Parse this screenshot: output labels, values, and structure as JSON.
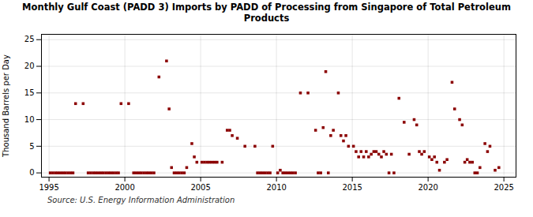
{
  "chart_data": {
    "type": "scatter",
    "title": "Monthly Gulf Coast (PADD 3) Imports by PADD of Processing from Singapore of Total Petroleum\nProducts",
    "ylabel": "Thousand Barrels per Day",
    "annotations": [
      "Source: U.S. Energy Information Administration"
    ],
    "color": "#8b0000",
    "marker": "square",
    "grid": true,
    "xlim": [
      1994.5,
      2025.8
    ],
    "ylim": [
      -0.8,
      26
    ],
    "xticks": [
      1995,
      2000,
      2005,
      2010,
      2015,
      2020,
      2025
    ],
    "yticks": [
      0,
      5,
      10,
      15,
      20,
      25
    ],
    "x": [
      1996.75,
      1997.25,
      1999.75,
      2000.25,
      2002.25,
      2002.75,
      2002.92,
      2003.08,
      2004.08,
      2004.42,
      2004.58,
      2004.75,
      2005.08,
      2005.25,
      2005.42,
      2005.58,
      2005.75,
      2005.92,
      2006.08,
      2006.42,
      2006.75,
      2006.92,
      2007.08,
      2007.42,
      2007.92,
      2008.58,
      2009.75,
      2010.25,
      2011.58,
      2012.08,
      2012.58,
      2013.08,
      2013.25,
      2013.58,
      2013.75,
      2014.08,
      2014.25,
      2014.42,
      2014.58,
      2014.75,
      2015.08,
      2015.25,
      2015.42,
      2015.58,
      2015.75,
      2015.92,
      2016.08,
      2016.25,
      2016.42,
      2016.58,
      2016.75,
      2016.92,
      2017.08,
      2017.25,
      2017.58,
      2018.08,
      2018.42,
      2018.75,
      2019.08,
      2019.25,
      2019.42,
      2019.58,
      2019.75,
      2020.08,
      2020.25,
      2020.42,
      2020.58,
      2021.08,
      2021.25,
      2021.58,
      2021.75,
      2022.08,
      2022.25,
      2022.42,
      2022.58,
      2022.75,
      2022.92,
      2023.42,
      2023.75,
      2023.92,
      2024.08,
      2024.42,
      2024.67,
      1995.08,
      1995.25,
      1995.42,
      1995.58,
      1995.75,
      1995.92,
      1996.08,
      1996.25,
      1996.42,
      1996.58,
      1997.58,
      1997.75,
      1997.92,
      1998.08,
      1998.25,
      1998.42,
      1998.58,
      1998.75,
      1998.92,
      1999.08,
      1999.25,
      1999.42,
      1999.58,
      2000.58,
      2000.75,
      2000.92,
      2001.08,
      2001.25,
      2001.42,
      2001.58,
      2001.75,
      2001.92,
      2003.25,
      2003.42,
      2003.58,
      2003.75,
      2003.92,
      2008.75,
      2008.92,
      2009.08,
      2009.25,
      2009.42,
      2009.58,
      2010.08,
      2010.42,
      2010.58,
      2010.75,
      2010.92,
      2011.08,
      2011.25,
      2012.75,
      2012.92,
      2013.42,
      2017.42,
      2017.75,
      2020.75,
      2023.08,
      2023.25
    ],
    "values": [
      13,
      13,
      13,
      13,
      18,
      21,
      12,
      1,
      1,
      5.5,
      3,
      2,
      2,
      2,
      2,
      2,
      2,
      2,
      2,
      2,
      8,
      8,
      7,
      6.5,
      5,
      5,
      5,
      0.5,
      15,
      15,
      8,
      8.5,
      19,
      7,
      8,
      15,
      7,
      6,
      7,
      5,
      5,
      4,
      3,
      4,
      3,
      4,
      3,
      3.5,
      4,
      4,
      3.5,
      3,
      4,
      3.5,
      3.5,
      14,
      9.5,
      3.5,
      10,
      9,
      4,
      3.5,
      4,
      3,
      2.5,
      3,
      2,
      2,
      2.5,
      17,
      12,
      10,
      9,
      2,
      2.5,
      2,
      2,
      1,
      5.5,
      4,
      5,
      0.5,
      1,
      0,
      0,
      0,
      0,
      0,
      0,
      0,
      0,
      0,
      0,
      0,
      0,
      0,
      0,
      0,
      0,
      0,
      0,
      0,
      0,
      0,
      0,
      0,
      0,
      0,
      0,
      0,
      0,
      0,
      0,
      0,
      0,
      0,
      0,
      0,
      0,
      0,
      0,
      0,
      0,
      0,
      0,
      0,
      0,
      0,
      0,
      0,
      0,
      0,
      0,
      0,
      0,
      0,
      0,
      0,
      0.5,
      0,
      0
    ]
  }
}
